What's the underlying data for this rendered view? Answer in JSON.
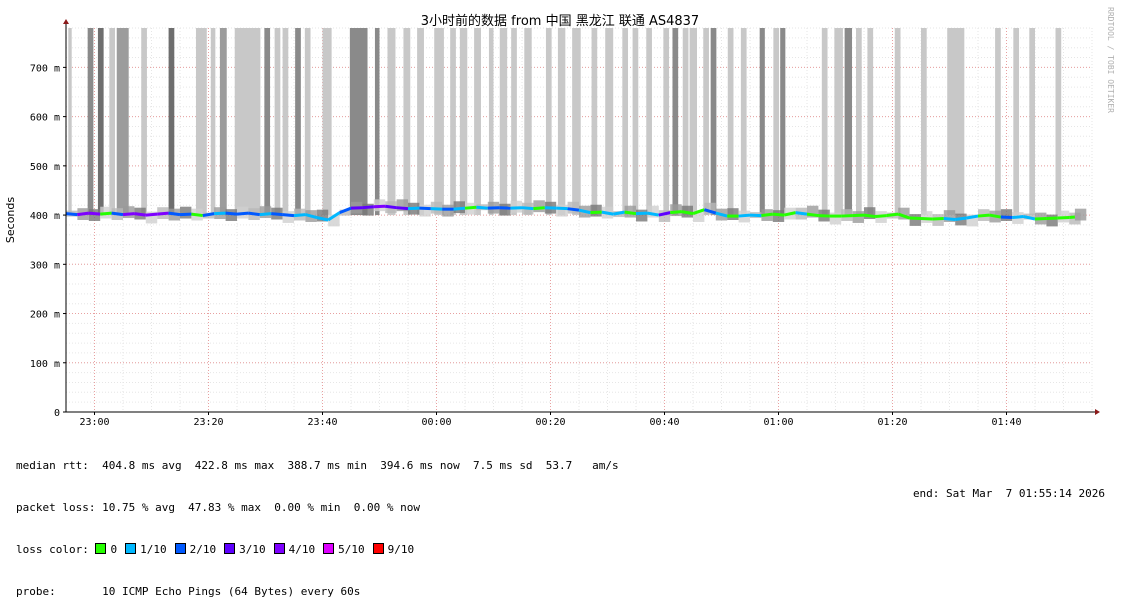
{
  "chart_data": {
    "type": "line",
    "title": "3小时前的数据 from 中国 黑龙江 联通 AS4837",
    "ylabel": "Seconds",
    "xlabel": "",
    "watermark": "RRDTOOL / TOBI OETIKER",
    "ylim": [
      0,
      780
    ],
    "y_ticks": [
      {
        "value": 0,
        "label": "0"
      },
      {
        "value": 100,
        "label": "100 m"
      },
      {
        "value": 200,
        "label": "200 m"
      },
      {
        "value": 300,
        "label": "300 m"
      },
      {
        "value": 400,
        "label": "400 m"
      },
      {
        "value": 500,
        "label": "500 m"
      },
      {
        "value": 600,
        "label": "600 m"
      },
      {
        "value": 700,
        "label": "700 m"
      }
    ],
    "x_range_minutes": [
      -5,
      175
    ],
    "x_ticks": [
      {
        "value": 0,
        "label": "23:00"
      },
      {
        "value": 20,
        "label": "23:20"
      },
      {
        "value": 40,
        "label": "23:40"
      },
      {
        "value": 60,
        "label": "00:00"
      },
      {
        "value": 80,
        "label": "00:20"
      },
      {
        "value": 100,
        "label": "00:40"
      },
      {
        "value": 120,
        "label": "01:00"
      },
      {
        "value": 140,
        "label": "01:20"
      },
      {
        "value": 160,
        "label": "01:40"
      }
    ],
    "smoke_spikes": [
      {
        "x": -4.6,
        "w": 0.6,
        "shade": "#c8c8c8"
      },
      {
        "x": -1.2,
        "w": 1.0,
        "shade": "#8a8a8a"
      },
      {
        "x": 0.6,
        "w": 1.0,
        "shade": "#6e6e6e"
      },
      {
        "x": 2.6,
        "w": 1.0,
        "shade": "#c8c8c8"
      },
      {
        "x": 3.9,
        "w": 2.1,
        "shade": "#9c9c9c"
      },
      {
        "x": 8.2,
        "w": 1.0,
        "shade": "#c8c8c8"
      },
      {
        "x": 13.0,
        "w": 1.0,
        "shade": "#6e6e6e"
      },
      {
        "x": 17.8,
        "w": 1.9,
        "shade": "#c8c8c8"
      },
      {
        "x": 20.4,
        "w": 0.8,
        "shade": "#c8c8c8"
      },
      {
        "x": 22.0,
        "w": 1.2,
        "shade": "#9c9c9c"
      },
      {
        "x": 24.6,
        "w": 4.5,
        "shade": "#c8c8c8"
      },
      {
        "x": 29.8,
        "w": 1.0,
        "shade": "#8a8a8a"
      },
      {
        "x": 31.6,
        "w": 1.0,
        "shade": "#c8c8c8"
      },
      {
        "x": 33.0,
        "w": 1.0,
        "shade": "#c8c8c8"
      },
      {
        "x": 35.2,
        "w": 1.0,
        "shade": "#8a8a8a"
      },
      {
        "x": 36.9,
        "w": 1.0,
        "shade": "#c8c8c8"
      },
      {
        "x": 40.0,
        "w": 1.6,
        "shade": "#c8c8c8"
      },
      {
        "x": 44.8,
        "w": 3.1,
        "shade": "#8a8a8a"
      },
      {
        "x": 49.2,
        "w": 0.8,
        "shade": "#8a8a8a"
      },
      {
        "x": 51.4,
        "w": 1.4,
        "shade": "#c8c8c8"
      },
      {
        "x": 54.2,
        "w": 1.2,
        "shade": "#c8c8c8"
      },
      {
        "x": 56.6,
        "w": 1.2,
        "shade": "#c8c8c8"
      },
      {
        "x": 59.6,
        "w": 1.7,
        "shade": "#c8c8c8"
      },
      {
        "x": 62.4,
        "w": 1.0,
        "shade": "#c8c8c8"
      },
      {
        "x": 64.1,
        "w": 1.3,
        "shade": "#c8c8c8"
      },
      {
        "x": 66.6,
        "w": 1.2,
        "shade": "#c8c8c8"
      },
      {
        "x": 69.2,
        "w": 0.8,
        "shade": "#c8c8c8"
      },
      {
        "x": 71.1,
        "w": 1.3,
        "shade": "#c8c8c8"
      },
      {
        "x": 73.1,
        "w": 1.0,
        "shade": "#c8c8c8"
      },
      {
        "x": 75.4,
        "w": 1.3,
        "shade": "#c8c8c8"
      },
      {
        "x": 79.2,
        "w": 1.0,
        "shade": "#c8c8c8"
      },
      {
        "x": 81.3,
        "w": 1.3,
        "shade": "#c8c8c8"
      },
      {
        "x": 83.8,
        "w": 1.5,
        "shade": "#c8c8c8"
      },
      {
        "x": 87.2,
        "w": 1.0,
        "shade": "#c8c8c8"
      },
      {
        "x": 89.6,
        "w": 1.4,
        "shade": "#c8c8c8"
      },
      {
        "x": 92.6,
        "w": 1.0,
        "shade": "#c8c8c8"
      },
      {
        "x": 94.4,
        "w": 1.0,
        "shade": "#c8c8c8"
      },
      {
        "x": 96.8,
        "w": 1.0,
        "shade": "#c8c8c8"
      },
      {
        "x": 99.8,
        "w": 1.0,
        "shade": "#c8c8c8"
      },
      {
        "x": 101.4,
        "w": 1.0,
        "shade": "#8a8a8a"
      },
      {
        "x": 103.2,
        "w": 1.0,
        "shade": "#c8c8c8"
      },
      {
        "x": 104.4,
        "w": 1.3,
        "shade": "#c8c8c8"
      },
      {
        "x": 106.8,
        "w": 1.0,
        "shade": "#c8c8c8"
      },
      {
        "x": 108.1,
        "w": 1.0,
        "shade": "#8a8a8a"
      },
      {
        "x": 111.1,
        "w": 1.0,
        "shade": "#c8c8c8"
      },
      {
        "x": 113.4,
        "w": 1.0,
        "shade": "#c8c8c8"
      },
      {
        "x": 116.7,
        "w": 0.9,
        "shade": "#8a8a8a"
      },
      {
        "x": 119.1,
        "w": 1.0,
        "shade": "#c8c8c8"
      },
      {
        "x": 120.3,
        "w": 0.9,
        "shade": "#8a8a8a"
      },
      {
        "x": 127.6,
        "w": 1.0,
        "shade": "#c8c8c8"
      },
      {
        "x": 129.8,
        "w": 1.5,
        "shade": "#c8c8c8"
      },
      {
        "x": 131.6,
        "w": 1.3,
        "shade": "#8a8a8a"
      },
      {
        "x": 133.6,
        "w": 1.0,
        "shade": "#c8c8c8"
      },
      {
        "x": 135.6,
        "w": 1.0,
        "shade": "#c8c8c8"
      },
      {
        "x": 140.4,
        "w": 1.0,
        "shade": "#c8c8c8"
      },
      {
        "x": 145.0,
        "w": 1.0,
        "shade": "#c8c8c8"
      },
      {
        "x": 149.6,
        "w": 3.0,
        "shade": "#c8c8c8"
      },
      {
        "x": 158.0,
        "w": 1.0,
        "shade": "#c8c8c8"
      },
      {
        "x": 161.2,
        "w": 1.0,
        "shade": "#c8c8c8"
      },
      {
        "x": 164.0,
        "w": 1.0,
        "shade": "#c8c8c8"
      },
      {
        "x": 168.6,
        "w": 1.0,
        "shade": "#c8c8c8"
      }
    ],
    "series": [
      {
        "name": "median rtt",
        "x": [
          -5,
          -3,
          -1,
          1,
          3,
          5,
          7,
          9,
          11,
          13,
          15,
          17,
          19,
          21,
          23,
          25,
          27,
          29,
          31,
          33,
          35,
          37,
          39,
          41,
          43,
          45,
          47,
          49,
          51,
          53,
          55,
          57,
          59,
          61,
          63,
          65,
          67,
          69,
          71,
          73,
          75,
          77,
          79,
          81,
          83,
          85,
          87,
          89,
          91,
          93,
          95,
          97,
          99,
          101,
          103,
          105,
          107,
          109,
          111,
          113,
          115,
          117,
          119,
          121,
          123,
          125,
          127,
          129,
          131,
          133,
          135,
          137,
          139,
          141,
          143,
          145,
          147,
          149,
          151,
          153,
          155,
          157,
          159,
          161,
          163,
          165,
          167,
          169,
          171,
          172
        ],
        "y": [
          403,
          401,
          404,
          402,
          404,
          401,
          403,
          400,
          402,
          404,
          401,
          402,
          399,
          403,
          404,
          402,
          404,
          401,
          403,
          401,
          399,
          401,
          395,
          390,
          405,
          414,
          415,
          417,
          418,
          415,
          413,
          414,
          413,
          412,
          412,
          414,
          416,
          414,
          415,
          414,
          415,
          413,
          415,
          414,
          413,
          410,
          405,
          406,
          402,
          406,
          403,
          404,
          400,
          405,
          407,
          403,
          411,
          404,
          398,
          398,
          400,
          399,
          402,
          400,
          405,
          402,
          399,
          398,
          398,
          399,
          400,
          397,
          399,
          402,
          394,
          393,
          392,
          393,
          391,
          394,
          398,
          400,
          396,
          395,
          397,
          392,
          393,
          394,
          395,
          396
        ],
        "loss": [
          "2/10",
          "4/10",
          "4/10",
          "0",
          "2/10",
          "4/10",
          "4/10",
          "4/10",
          "4/10",
          "2/10",
          "2/10",
          "0",
          "2/10",
          "1/10",
          "2/10",
          "2/10",
          "2/10",
          "1/10",
          "2/10",
          "2/10",
          "1/10",
          "1/10",
          "1/10",
          "1/10",
          "2/10",
          "3/10",
          "3/10",
          "4/10",
          "3/10",
          "3/10",
          "1/10",
          "2/10",
          "1/10",
          "2/10",
          "1/10",
          "0",
          "1/10",
          "2/10",
          "2/10",
          "1/10",
          "1/10",
          "0",
          "1/10",
          "1/10",
          "2/10",
          "1/10",
          "0",
          "1/10",
          "1/10",
          "0",
          "1/10",
          "1/10",
          "3/10",
          "0",
          "0",
          "0",
          "2/10",
          "1/10",
          "0",
          "1/10",
          "1/10",
          "0",
          "0",
          "0",
          "1/10",
          "0",
          "0",
          "0",
          "0",
          "0",
          "0",
          "0",
          "0",
          "0",
          "0",
          "0",
          "0",
          "1/10",
          "1/10",
          "1/10",
          "0",
          "0",
          "2/10",
          "1/10",
          "1/10",
          "0",
          "0",
          "0",
          "0",
          "0"
        ]
      }
    ],
    "loss_colors": {
      "0": "#26ff00",
      "1/10": "#00b8ff",
      "2/10": "#0059ff",
      "3/10": "#5e00ff",
      "4/10": "#7e00ff",
      "5/10": "#dd00ff",
      "9/10": "#ff0000"
    },
    "grid": true,
    "legend_position": "bottom"
  },
  "legend": {
    "median_rtt": "median rtt:  404.8 ms avg  422.8 ms max  388.7 ms min  394.6 ms now  7.5 ms sd  53.7   am/s",
    "packet_loss": "packet loss: 10.75 % avg  47.83 % max  0.00 % min  0.00 % now",
    "loss_color_label": "loss color:",
    "loss_items": [
      {
        "label": "0",
        "color": "#26ff00"
      },
      {
        "label": "1/10",
        "color": "#00b8ff"
      },
      {
        "label": "2/10",
        "color": "#0059ff"
      },
      {
        "label": "3/10",
        "color": "#5e00ff"
      },
      {
        "label": "4/10",
        "color": "#7e00ff"
      },
      {
        "label": "5/10",
        "color": "#dd00ff"
      },
      {
        "label": "9/10",
        "color": "#ff0000"
      }
    ],
    "probe": "probe:       10 ICMP Echo Pings (64 Bytes) every 60s",
    "end": "end: Sat Mar  7 01:55:14 2026"
  }
}
